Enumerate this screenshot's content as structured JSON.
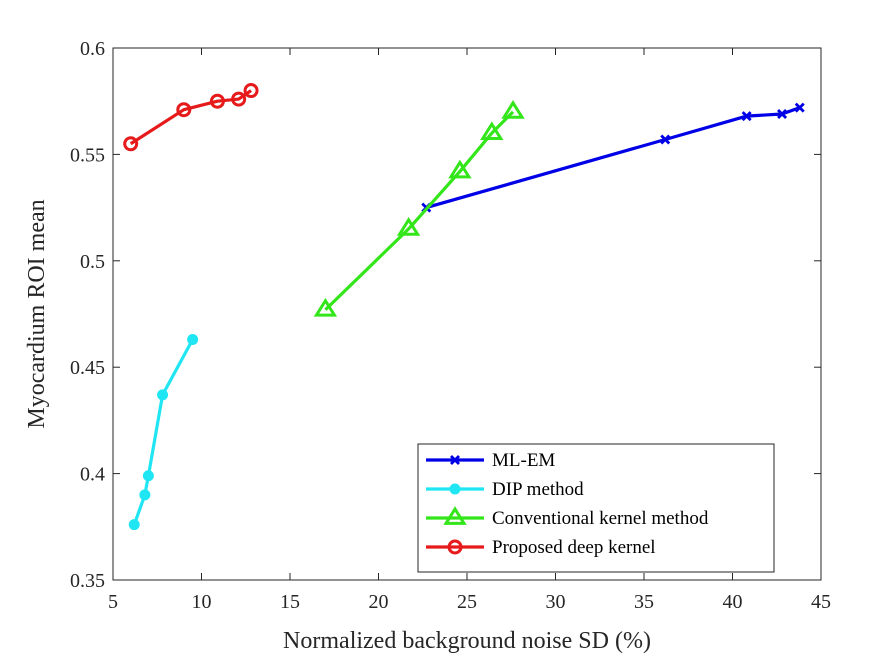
{
  "chart_data": {
    "type": "line",
    "xlabel": "Normalized background noise SD (%)",
    "ylabel": "Myocardium ROI mean",
    "xlim": [
      5,
      45
    ],
    "ylim": [
      0.35,
      0.6
    ],
    "xticks": [
      "5",
      "10",
      "15",
      "20",
      "25",
      "30",
      "35",
      "40",
      "45"
    ],
    "yticks": [
      "0.35",
      "0.4",
      "0.45",
      "0.5",
      "0.55",
      "0.6"
    ],
    "grid": false,
    "legend_position": "bottom-right",
    "series": [
      {
        "name": "ML-EM",
        "color": "#0000e6",
        "marker": "x",
        "x": [
          22.7,
          36.2,
          40.8,
          42.8,
          43.8
        ],
        "y": [
          0.525,
          0.557,
          0.568,
          0.569,
          0.572
        ]
      },
      {
        "name": "DIP method",
        "color": "#1fe6f2",
        "marker": "circle-filled",
        "x": [
          6.2,
          6.8,
          7.0,
          7.8,
          9.5
        ],
        "y": [
          0.376,
          0.39,
          0.399,
          0.437,
          0.463
        ]
      },
      {
        "name": "Conventional kernel method",
        "color": "#33e61a",
        "marker": "triangle",
        "x": [
          17.0,
          21.7,
          24.6,
          26.4,
          27.6
        ],
        "y": [
          0.477,
          0.515,
          0.542,
          0.56,
          0.57
        ]
      },
      {
        "name": "Proposed deep kernel",
        "color": "#e61a1a",
        "marker": "circle-open",
        "x": [
          6.0,
          9.0,
          10.9,
          12.1,
          12.8
        ],
        "y": [
          0.555,
          0.571,
          0.575,
          0.576,
          0.58
        ]
      }
    ]
  }
}
